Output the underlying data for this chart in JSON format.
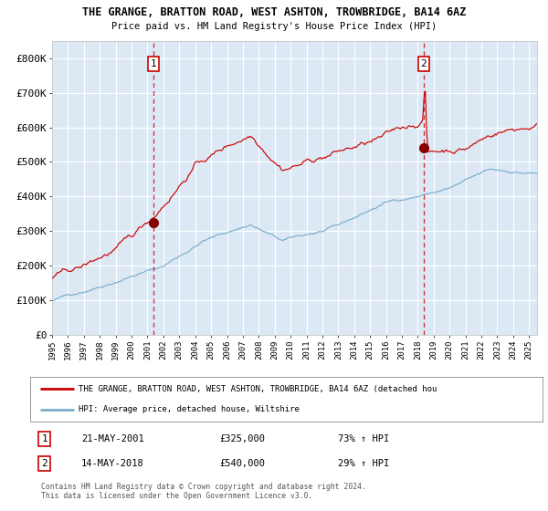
{
  "title1": "THE GRANGE, BRATTON ROAD, WEST ASHTON, TROWBRIDGE, BA14 6AZ",
  "title2": "Price paid vs. HM Land Registry's House Price Index (HPI)",
  "legend_line1": "THE GRANGE, BRATTON ROAD, WEST ASHTON, TROWBRIDGE, BA14 6AZ (detached hou",
  "legend_line2": "HPI: Average price, detached house, Wiltshire",
  "ann1_label": "1",
  "ann1_date": "21-MAY-2001",
  "ann1_price": "£325,000",
  "ann1_pct": "73% ↑ HPI",
  "ann1_year": 2001.38,
  "ann1_value": 325000,
  "ann2_label": "2",
  "ann2_date": "14-MAY-2018",
  "ann2_price": "£540,000",
  "ann2_pct": "29% ↑ HPI",
  "ann2_year": 2018.37,
  "ann2_value": 540000,
  "footer": "Contains HM Land Registry data © Crown copyright and database right 2024.\nThis data is licensed under the Open Government Licence v3.0.",
  "bg_color": "#dce9f5",
  "line_color_red": "#cc0000",
  "line_color_blue": "#7aaccc",
  "grid_color": "#ffffff",
  "marker_color": "#880000",
  "dashed_color": "#cc0000",
  "ylim_min": 0,
  "ylim_max": 850000,
  "xlim_start": 1995.0,
  "xlim_end": 2025.5,
  "yticks": [
    0,
    100000,
    200000,
    300000,
    400000,
    500000,
    600000,
    700000,
    800000
  ],
  "ytick_labels": [
    "£0",
    "£100K",
    "£200K",
    "£300K",
    "£400K",
    "£500K",
    "£600K",
    "£700K",
    "£800K"
  ],
  "xtick_start": 1995,
  "xtick_end": 2025
}
